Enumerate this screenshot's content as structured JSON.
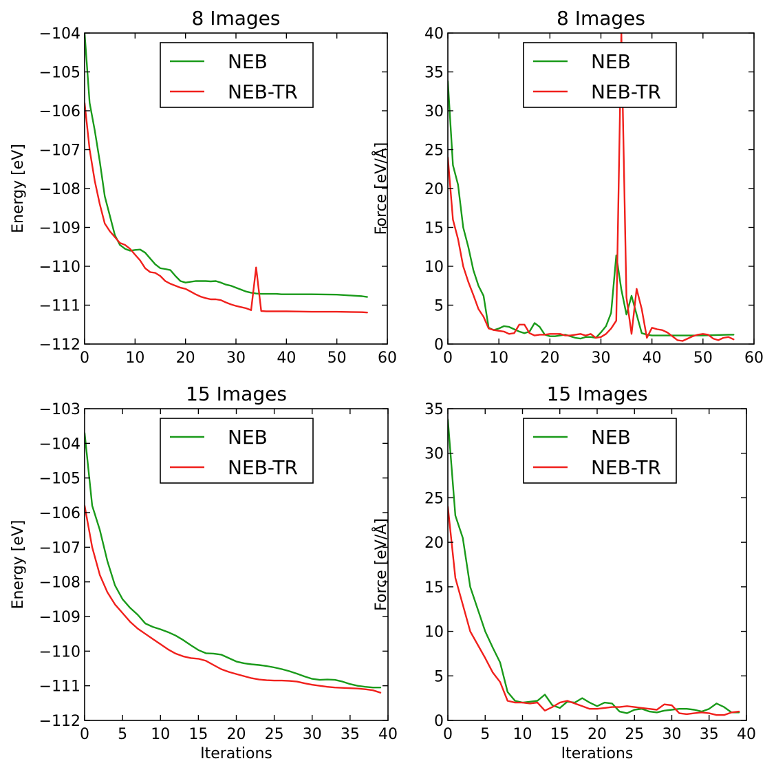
{
  "colors": {
    "NEB": "#1a9a1a",
    "NEB-TR": "#f0201c"
  },
  "chart_data": [
    {
      "type": "line",
      "title": "8 Images",
      "xlabel": "",
      "ylabel": "Energy [eV]",
      "xlim": [
        0,
        60
      ],
      "ylim": [
        -112,
        -104
      ],
      "xticks": [
        0,
        10,
        20,
        30,
        40,
        50,
        60
      ],
      "yticks": [
        -112,
        -111,
        -110,
        -109,
        -108,
        -107,
        -106,
        -105,
        -104
      ],
      "xtick_labels": [
        "0",
        "10",
        "20",
        "30",
        "40",
        "50",
        "60"
      ],
      "ytick_labels": [
        "−112",
        "−111",
        "−110",
        "−109",
        "−108",
        "−107",
        "−106",
        "−105",
        "−104"
      ],
      "legend": "top-center",
      "series": [
        {
          "name": "NEB",
          "color": "#1a9a1a",
          "x": [
            0,
            1,
            2,
            3,
            4,
            5,
            6,
            7,
            8,
            9,
            10,
            11,
            12,
            13,
            14,
            15,
            16,
            17,
            18,
            19,
            20,
            21,
            22,
            23,
            24,
            25,
            26,
            27,
            28,
            29,
            30,
            31,
            32,
            33,
            34,
            35,
            36,
            37,
            38,
            39,
            40,
            45,
            50,
            55,
            56
          ],
          "y": [
            -104.0,
            -105.8,
            -106.5,
            -107.3,
            -108.2,
            -108.7,
            -109.2,
            -109.45,
            -109.55,
            -109.6,
            -109.58,
            -109.57,
            -109.65,
            -109.8,
            -109.95,
            -110.05,
            -110.07,
            -110.1,
            -110.25,
            -110.38,
            -110.42,
            -110.4,
            -110.38,
            -110.38,
            -110.38,
            -110.39,
            -110.38,
            -110.42,
            -110.47,
            -110.5,
            -110.55,
            -110.6,
            -110.65,
            -110.68,
            -110.7,
            -110.71,
            -110.71,
            -110.71,
            -110.71,
            -110.72,
            -110.72,
            -110.72,
            -110.73,
            -110.77,
            -110.79
          ]
        },
        {
          "name": "NEB-TR",
          "color": "#f0201c",
          "x": [
            0,
            1,
            2,
            3,
            4,
            5,
            6,
            7,
            8,
            9,
            10,
            11,
            12,
            13,
            14,
            15,
            16,
            17,
            18,
            19,
            20,
            21,
            22,
            23,
            24,
            25,
            26,
            27,
            28,
            29,
            30,
            31,
            32,
            33,
            34,
            35,
            36,
            40,
            45,
            50,
            55,
            56
          ],
          "y": [
            -105.8,
            -107.0,
            -107.8,
            -108.4,
            -108.9,
            -109.1,
            -109.25,
            -109.4,
            -109.45,
            -109.55,
            -109.7,
            -109.85,
            -110.05,
            -110.15,
            -110.17,
            -110.25,
            -110.38,
            -110.45,
            -110.5,
            -110.55,
            -110.58,
            -110.65,
            -110.72,
            -110.78,
            -110.82,
            -110.85,
            -110.85,
            -110.87,
            -110.93,
            -110.98,
            -111.02,
            -111.05,
            -111.08,
            -111.13,
            -110.03,
            -111.15,
            -111.16,
            -111.16,
            -111.17,
            -111.17,
            -111.18,
            -111.19
          ]
        }
      ]
    },
    {
      "type": "line",
      "title": "8 Images",
      "xlabel": "",
      "ylabel": "Force [eV/Å]",
      "xlim": [
        0,
        60
      ],
      "ylim": [
        0,
        40
      ],
      "xticks": [
        0,
        10,
        20,
        30,
        40,
        50,
        60
      ],
      "yticks": [
        0,
        5,
        10,
        15,
        20,
        25,
        30,
        35,
        40
      ],
      "xtick_labels": [
        "0",
        "10",
        "20",
        "30",
        "40",
        "50",
        "60"
      ],
      "ytick_labels": [
        "0",
        "5",
        "10",
        "15",
        "20",
        "25",
        "30",
        "35",
        "40"
      ],
      "legend": "top-center",
      "series": [
        {
          "name": "NEB",
          "color": "#1a9a1a",
          "x": [
            0,
            1,
            2,
            3,
            4,
            5,
            6,
            7,
            8,
            9,
            10,
            11,
            12,
            13,
            14,
            15,
            16,
            17,
            18,
            19,
            20,
            21,
            22,
            23,
            24,
            25,
            26,
            27,
            28,
            29,
            30,
            31,
            32,
            33,
            34,
            35,
            36,
            37,
            38,
            39,
            40,
            45,
            50,
            55,
            56
          ],
          "y": [
            33.8,
            23.0,
            20.5,
            15.0,
            12.5,
            9.5,
            7.5,
            6.2,
            2.1,
            1.8,
            2.0,
            2.3,
            2.2,
            1.9,
            1.6,
            1.4,
            1.6,
            2.7,
            2.2,
            1.2,
            1.0,
            1.0,
            1.1,
            1.2,
            1.0,
            0.8,
            0.7,
            0.9,
            0.9,
            0.8,
            1.5,
            2.3,
            4.0,
            11.4,
            7.0,
            3.8,
            6.2,
            3.8,
            1.4,
            1.2,
            1.1,
            1.1,
            1.1,
            1.2,
            1.2
          ]
        },
        {
          "name": "NEB-TR",
          "color": "#f0201c",
          "x": [
            0,
            1,
            2,
            3,
            4,
            5,
            6,
            7,
            8,
            9,
            10,
            11,
            12,
            13,
            14,
            15,
            16,
            17,
            18,
            19,
            20,
            21,
            22,
            23,
            24,
            25,
            26,
            27,
            28,
            29,
            30,
            31,
            32,
            33,
            34,
            35,
            36,
            37,
            38,
            39,
            40,
            41,
            42,
            43,
            44,
            45,
            46,
            47,
            48,
            49,
            50,
            51,
            52,
            53,
            54,
            55,
            56
          ],
          "y": [
            24.0,
            16.0,
            13.5,
            10.0,
            8.0,
            6.3,
            4.5,
            3.5,
            2.0,
            1.8,
            1.7,
            1.6,
            1.3,
            1.4,
            2.5,
            2.5,
            1.4,
            1.1,
            1.2,
            1.2,
            1.3,
            1.3,
            1.3,
            1.1,
            1.1,
            1.2,
            1.3,
            1.1,
            1.3,
            0.8,
            0.9,
            1.3,
            2.0,
            3.0,
            40.0,
            6.0,
            1.3,
            7.1,
            4.5,
            0.8,
            2.1,
            1.9,
            1.8,
            1.5,
            1.0,
            0.5,
            0.4,
            0.7,
            1.0,
            1.2,
            1.3,
            1.2,
            0.7,
            0.5,
            0.8,
            0.9,
            0.6
          ]
        }
      ]
    },
    {
      "type": "line",
      "title": "15 Images",
      "xlabel": "Iterations",
      "ylabel": "Energy [eV]",
      "xlim": [
        0,
        40
      ],
      "ylim": [
        -112,
        -103
      ],
      "xticks": [
        0,
        5,
        10,
        15,
        20,
        25,
        30,
        35,
        40
      ],
      "yticks": [
        -112,
        -111,
        -110,
        -109,
        -108,
        -107,
        -106,
        -105,
        -104,
        -103
      ],
      "xtick_labels": [
        "0",
        "5",
        "10",
        "15",
        "20",
        "25",
        "30",
        "35",
        "40"
      ],
      "ytick_labels": [
        "−112",
        "−111",
        "−110",
        "−109",
        "−108",
        "−107",
        "−106",
        "−105",
        "−104",
        "−103"
      ],
      "legend": "top-center",
      "series": [
        {
          "name": "NEB",
          "color": "#1a9a1a",
          "x": [
            0,
            1,
            2,
            3,
            4,
            5,
            6,
            7,
            8,
            9,
            10,
            11,
            12,
            13,
            14,
            15,
            16,
            17,
            18,
            19,
            20,
            21,
            22,
            23,
            24,
            25,
            26,
            27,
            28,
            29,
            30,
            31,
            32,
            33,
            34,
            35,
            36,
            37,
            38,
            39
          ],
          "y": [
            -103.7,
            -105.8,
            -106.5,
            -107.4,
            -108.1,
            -108.5,
            -108.75,
            -108.95,
            -109.2,
            -109.3,
            -109.37,
            -109.45,
            -109.55,
            -109.68,
            -109.83,
            -109.97,
            -110.06,
            -110.07,
            -110.1,
            -110.2,
            -110.3,
            -110.35,
            -110.38,
            -110.4,
            -110.43,
            -110.47,
            -110.52,
            -110.58,
            -110.65,
            -110.73,
            -110.8,
            -110.83,
            -110.82,
            -110.83,
            -110.88,
            -110.95,
            -111.0,
            -111.03,
            -111.05,
            -111.05
          ]
        },
        {
          "name": "NEB-TR",
          "color": "#f0201c",
          "x": [
            0,
            1,
            2,
            3,
            4,
            5,
            6,
            7,
            8,
            9,
            10,
            11,
            12,
            13,
            14,
            15,
            16,
            17,
            18,
            19,
            20,
            21,
            22,
            23,
            24,
            25,
            26,
            27,
            28,
            29,
            30,
            31,
            32,
            33,
            34,
            35,
            36,
            37,
            38,
            39
          ],
          "y": [
            -105.8,
            -107.0,
            -107.8,
            -108.3,
            -108.65,
            -108.9,
            -109.15,
            -109.35,
            -109.5,
            -109.65,
            -109.8,
            -109.95,
            -110.07,
            -110.15,
            -110.2,
            -110.22,
            -110.28,
            -110.4,
            -110.52,
            -110.6,
            -110.66,
            -110.72,
            -110.78,
            -110.82,
            -110.84,
            -110.85,
            -110.85,
            -110.86,
            -110.88,
            -110.93,
            -110.97,
            -111.0,
            -111.03,
            -111.05,
            -111.06,
            -111.07,
            -111.08,
            -111.1,
            -111.13,
            -111.2
          ]
        }
      ]
    },
    {
      "type": "line",
      "title": "15 Images",
      "xlabel": "Iterations",
      "ylabel": "Force [eV/Å]",
      "xlim": [
        0,
        40
      ],
      "ylim": [
        0,
        35
      ],
      "xticks": [
        0,
        5,
        10,
        15,
        20,
        25,
        30,
        35,
        40
      ],
      "yticks": [
        0,
        5,
        10,
        15,
        20,
        25,
        30,
        35
      ],
      "xtick_labels": [
        "0",
        "5",
        "10",
        "15",
        "20",
        "25",
        "30",
        "35",
        "40"
      ],
      "ytick_labels": [
        "0",
        "5",
        "10",
        "15",
        "20",
        "25",
        "30",
        "35"
      ],
      "legend": "top-center",
      "series": [
        {
          "name": "NEB",
          "color": "#1a9a1a",
          "x": [
            0,
            1,
            2,
            3,
            4,
            5,
            6,
            7,
            8,
            9,
            10,
            11,
            12,
            13,
            14,
            15,
            16,
            17,
            18,
            19,
            20,
            21,
            22,
            23,
            24,
            25,
            26,
            27,
            28,
            29,
            30,
            31,
            32,
            33,
            34,
            35,
            36,
            37,
            38,
            39
          ],
          "y": [
            33.8,
            23.0,
            20.5,
            15.0,
            12.5,
            10.0,
            8.2,
            6.5,
            3.2,
            2.2,
            2.0,
            2.1,
            2.2,
            2.9,
            1.7,
            1.4,
            2.1,
            2.0,
            2.5,
            2.0,
            1.6,
            2.0,
            1.9,
            1.0,
            0.8,
            1.2,
            1.3,
            1.0,
            0.9,
            1.1,
            1.2,
            1.3,
            1.3,
            1.2,
            1.0,
            1.3,
            1.9,
            1.5,
            0.9,
            0.9
          ]
        },
        {
          "name": "NEB-TR",
          "color": "#f0201c",
          "x": [
            0,
            1,
            2,
            3,
            4,
            5,
            6,
            7,
            8,
            9,
            10,
            11,
            12,
            13,
            14,
            15,
            16,
            17,
            18,
            19,
            20,
            21,
            22,
            23,
            24,
            25,
            26,
            27,
            28,
            29,
            30,
            31,
            32,
            33,
            34,
            35,
            36,
            37,
            38,
            39
          ],
          "y": [
            24.0,
            16.0,
            13.0,
            10.0,
            8.5,
            7.0,
            5.4,
            4.3,
            2.2,
            2.0,
            2.0,
            1.9,
            2.0,
            1.1,
            1.5,
            2.0,
            2.2,
            1.9,
            1.6,
            1.3,
            1.3,
            1.4,
            1.5,
            1.5,
            1.6,
            1.5,
            1.4,
            1.3,
            1.2,
            1.8,
            1.7,
            0.8,
            0.7,
            0.8,
            0.9,
            0.8,
            0.6,
            0.6,
            0.9,
            1.0
          ]
        }
      ]
    }
  ]
}
